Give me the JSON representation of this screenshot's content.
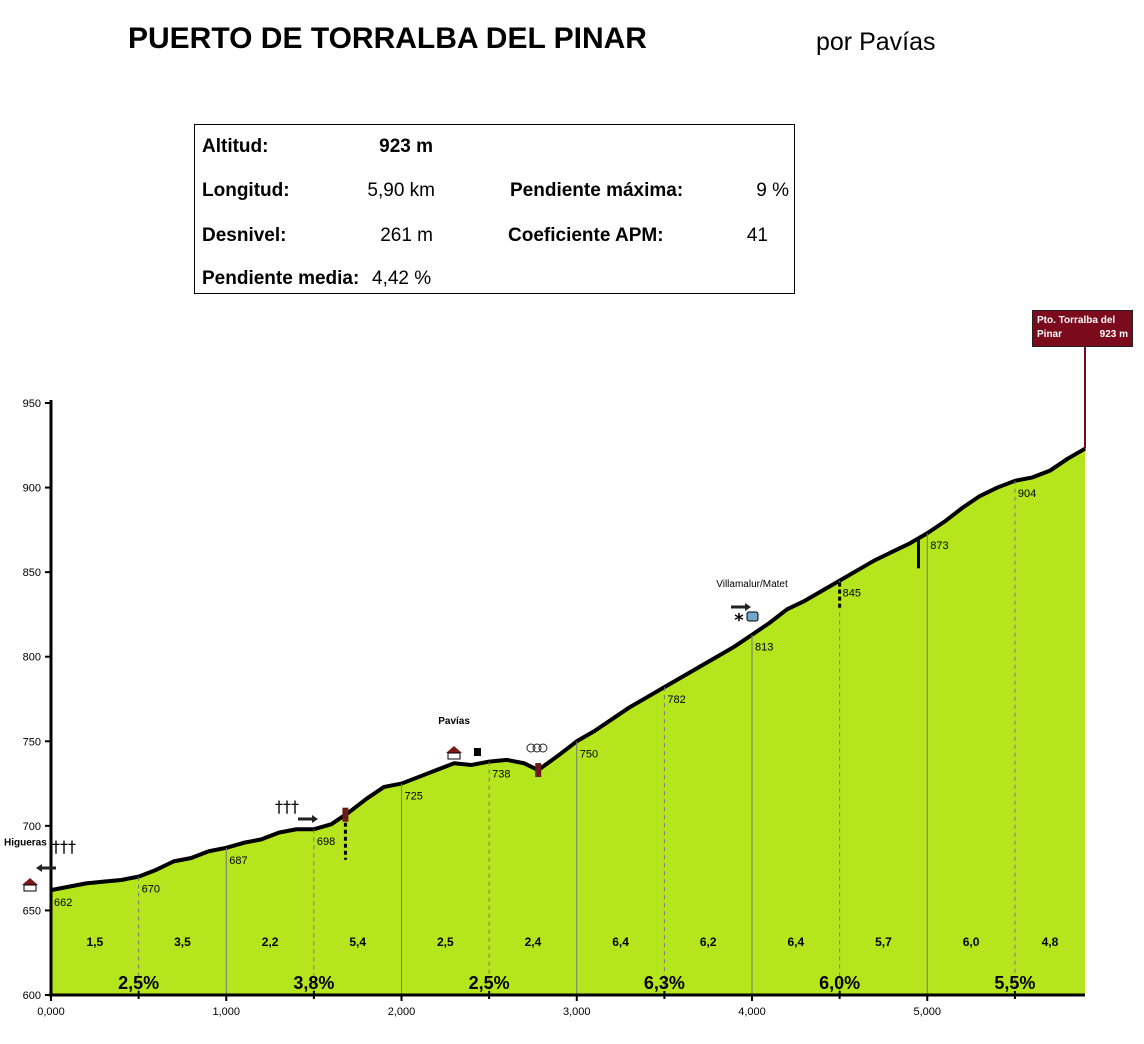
{
  "header": {
    "title": "PUERTO DE TORRALBA DEL PINAR",
    "author": "por Pavías"
  },
  "stats": {
    "altitud_label": "Altitud:",
    "altitud_value": "923 m",
    "longitud_label": "Longitud:",
    "longitud_value": "5,90 km",
    "desnivel_label": "Desnivel:",
    "desnivel_value": "261 m",
    "pendiente_media_label": "Pendiente media:",
    "pendiente_media_value": "4,42 %",
    "pendiente_maxima_label": "Pendiente máxima:",
    "pendiente_maxima_value": "9 %",
    "coeficiente_label": "Coeficiente APM:",
    "coeficiente_value": "41"
  },
  "summit": {
    "line1": "Pto. Torralba del",
    "line2_name": "Pinar",
    "line2_alt": "923 m"
  },
  "colors": {
    "fill": "#b5e61d",
    "line": "#000000",
    "summit_box": "#7a0a1c",
    "marker": "#6b1a1a"
  },
  "chart_data": {
    "type": "area",
    "xlim": [
      0,
      5.9
    ],
    "ylim": [
      600,
      950
    ],
    "x_ticks": [
      0,
      1,
      2,
      3,
      4,
      5
    ],
    "x_tick_labels": [
      "0,000",
      "1,000",
      "2,000",
      "3,000",
      "4,000",
      "5,000"
    ],
    "y_ticks": [
      600,
      650,
      700,
      750,
      800,
      850,
      900,
      950
    ],
    "profile": [
      [
        0,
        662
      ],
      [
        0.1,
        664
      ],
      [
        0.2,
        666
      ],
      [
        0.3,
        667
      ],
      [
        0.4,
        668
      ],
      [
        0.5,
        670
      ],
      [
        0.6,
        674
      ],
      [
        0.7,
        679
      ],
      [
        0.8,
        681
      ],
      [
        0.9,
        685
      ],
      [
        1.0,
        687
      ],
      [
        1.1,
        690
      ],
      [
        1.2,
        692
      ],
      [
        1.3,
        696
      ],
      [
        1.4,
        698
      ],
      [
        1.5,
        698
      ],
      [
        1.6,
        701
      ],
      [
        1.7,
        708
      ],
      [
        1.8,
        716
      ],
      [
        1.9,
        723
      ],
      [
        2.0,
        725
      ],
      [
        2.1,
        729
      ],
      [
        2.2,
        733
      ],
      [
        2.3,
        737
      ],
      [
        2.4,
        736
      ],
      [
        2.5,
        738
      ],
      [
        2.6,
        739
      ],
      [
        2.7,
        737
      ],
      [
        2.78,
        733
      ],
      [
        2.9,
        742
      ],
      [
        3.0,
        750
      ],
      [
        3.1,
        756
      ],
      [
        3.2,
        763
      ],
      [
        3.3,
        770
      ],
      [
        3.4,
        776
      ],
      [
        3.5,
        782
      ],
      [
        3.6,
        788
      ],
      [
        3.7,
        794
      ],
      [
        3.8,
        800
      ],
      [
        3.9,
        806
      ],
      [
        4.0,
        813
      ],
      [
        4.1,
        820
      ],
      [
        4.2,
        828
      ],
      [
        4.3,
        833
      ],
      [
        4.4,
        839
      ],
      [
        4.5,
        845
      ],
      [
        4.6,
        851
      ],
      [
        4.7,
        857
      ],
      [
        4.8,
        862
      ],
      [
        4.9,
        867
      ],
      [
        5.0,
        873
      ],
      [
        5.1,
        880
      ],
      [
        5.2,
        888
      ],
      [
        5.3,
        895
      ],
      [
        5.4,
        900
      ],
      [
        5.5,
        904
      ],
      [
        5.6,
        906
      ],
      [
        5.7,
        910
      ],
      [
        5.8,
        917
      ],
      [
        5.9,
        923
      ]
    ],
    "point_labels": [
      {
        "x": 0,
        "alt": "662"
      },
      {
        "x": 0.5,
        "alt": "670"
      },
      {
        "x": 1.0,
        "alt": "687"
      },
      {
        "x": 1.5,
        "alt": "698"
      },
      {
        "x": 2.0,
        "alt": "725"
      },
      {
        "x": 2.5,
        "alt": "738"
      },
      {
        "x": 3.0,
        "alt": "750"
      },
      {
        "x": 3.5,
        "alt": "782"
      },
      {
        "x": 4.0,
        "alt": "813"
      },
      {
        "x": 4.5,
        "alt": "845"
      },
      {
        "x": 5.0,
        "alt": "873"
      },
      {
        "x": 5.5,
        "alt": "904"
      }
    ],
    "segment_gradients": [
      {
        "x": 0.25,
        "label": "1,5"
      },
      {
        "x": 0.75,
        "label": "3,5"
      },
      {
        "x": 1.25,
        "label": "2,2"
      },
      {
        "x": 1.75,
        "label": "5,4"
      },
      {
        "x": 2.25,
        "label": "2,5"
      },
      {
        "x": 2.75,
        "label": "2,4"
      },
      {
        "x": 3.25,
        "label": "6,4"
      },
      {
        "x": 3.75,
        "label": "6,2"
      },
      {
        "x": 4.25,
        "label": "6,4"
      },
      {
        "x": 4.75,
        "label": "5,7"
      },
      {
        "x": 5.25,
        "label": "6,0"
      },
      {
        "x": 5.7,
        "label": "4,8"
      }
    ],
    "km_gradients": [
      {
        "x": 0.5,
        "label": "2,5%"
      },
      {
        "x": 1.5,
        "label": "3,8%"
      },
      {
        "x": 2.5,
        "label": "2,5%"
      },
      {
        "x": 3.5,
        "label": "6,3%"
      },
      {
        "x": 4.5,
        "label": "6,0%"
      },
      {
        "x": 5.5,
        "label": "5,5%"
      }
    ],
    "places": [
      {
        "x": 0,
        "alt": 680,
        "label": "Higueras"
      },
      {
        "x": 2.3,
        "alt": 752,
        "label": "Pavías"
      },
      {
        "x": 4.0,
        "alt": 833,
        "label": "Villamalur/Matet"
      }
    ]
  }
}
